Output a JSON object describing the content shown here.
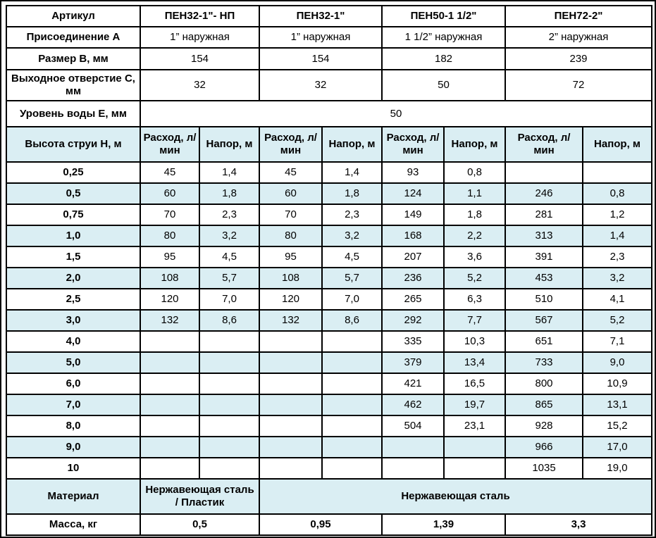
{
  "colors": {
    "header_text": "#1f35a8",
    "row_alt_bg": "#daeef3",
    "grid": "#000000"
  },
  "table": {
    "article_row": {
      "label": "Артикул",
      "products": [
        "ПЕН32-1\"- НП",
        "ПЕН32-1\"",
        "ПЕН50-1 1/2\"",
        "ПЕН72-2\""
      ]
    },
    "info_rows": [
      {
        "label": "Присоединение А",
        "values": [
          "1” наружная",
          "1” наружная",
          "1 1/2” наружная",
          "2” наружная"
        ]
      },
      {
        "label": "Размер В, мм",
        "values": [
          "154",
          "154",
          "182",
          "239"
        ]
      },
      {
        "label": "Выходное отверстие С, мм",
        "values": [
          "32",
          "32",
          "50",
          "72"
        ]
      }
    ],
    "water_level_row": {
      "label": "Уровень воды Е, мм",
      "value": "50"
    },
    "flow_header_row": {
      "label": "Высота струи Н, м",
      "columns": [
        "Расход, л/мин",
        "Напор, м",
        "Расход, л/мин",
        "Напор, м",
        "Расход, л/мин",
        "Напор, м",
        "Расход, л/мин",
        "Напор, м"
      ]
    },
    "data_rows": [
      {
        "h": "0,25",
        "cells": [
          "45",
          "1,4",
          "45",
          "1,4",
          "93",
          "0,8",
          "",
          ""
        ]
      },
      {
        "h": "0,5",
        "cells": [
          "60",
          "1,8",
          "60",
          "1,8",
          "124",
          "1,1",
          "246",
          "0,8"
        ]
      },
      {
        "h": "0,75",
        "cells": [
          "70",
          "2,3",
          "70",
          "2,3",
          "149",
          "1,8",
          "281",
          "1,2"
        ]
      },
      {
        "h": "1,0",
        "cells": [
          "80",
          "3,2",
          "80",
          "3,2",
          "168",
          "2,2",
          "313",
          "1,4"
        ]
      },
      {
        "h": "1,5",
        "cells": [
          "95",
          "4,5",
          "95",
          "4,5",
          "207",
          "3,6",
          "391",
          "2,3"
        ]
      },
      {
        "h": "2,0",
        "cells": [
          "108",
          "5,7",
          "108",
          "5,7",
          "236",
          "5,2",
          "453",
          "3,2"
        ]
      },
      {
        "h": "2,5",
        "cells": [
          "120",
          "7,0",
          "120",
          "7,0",
          "265",
          "6,3",
          "510",
          "4,1"
        ]
      },
      {
        "h": "3,0",
        "cells": [
          "132",
          "8,6",
          "132",
          "8,6",
          "292",
          "7,7",
          "567",
          "5,2"
        ]
      },
      {
        "h": "4,0",
        "cells": [
          "",
          "",
          "",
          "",
          "335",
          "10,3",
          "651",
          "7,1"
        ]
      },
      {
        "h": "5,0",
        "cells": [
          "",
          "",
          "",
          "",
          "379",
          "13,4",
          "733",
          "9,0"
        ]
      },
      {
        "h": "6,0",
        "cells": [
          "",
          "",
          "",
          "",
          "421",
          "16,5",
          "800",
          "10,9"
        ]
      },
      {
        "h": "7,0",
        "cells": [
          "",
          "",
          "",
          "",
          "462",
          "19,7",
          "865",
          "13,1"
        ]
      },
      {
        "h": "8,0",
        "cells": [
          "",
          "",
          "",
          "",
          "504",
          "23,1",
          "928",
          "15,2"
        ]
      },
      {
        "h": "9,0",
        "cells": [
          "",
          "",
          "",
          "",
          "",
          "",
          "966",
          "17,0"
        ]
      },
      {
        "h": "10",
        "cells": [
          "",
          "",
          "",
          "",
          "",
          "",
          "1035",
          "19,0"
        ]
      }
    ],
    "material_row": {
      "label": "Материал",
      "value_product1": "Нержавеющая сталь / Пластик",
      "value_products234": "Нержавеющая сталь"
    },
    "mass_row": {
      "label": "Масса, кг",
      "values": [
        "0,5",
        "0,95",
        "1,39",
        "3,3"
      ]
    }
  }
}
